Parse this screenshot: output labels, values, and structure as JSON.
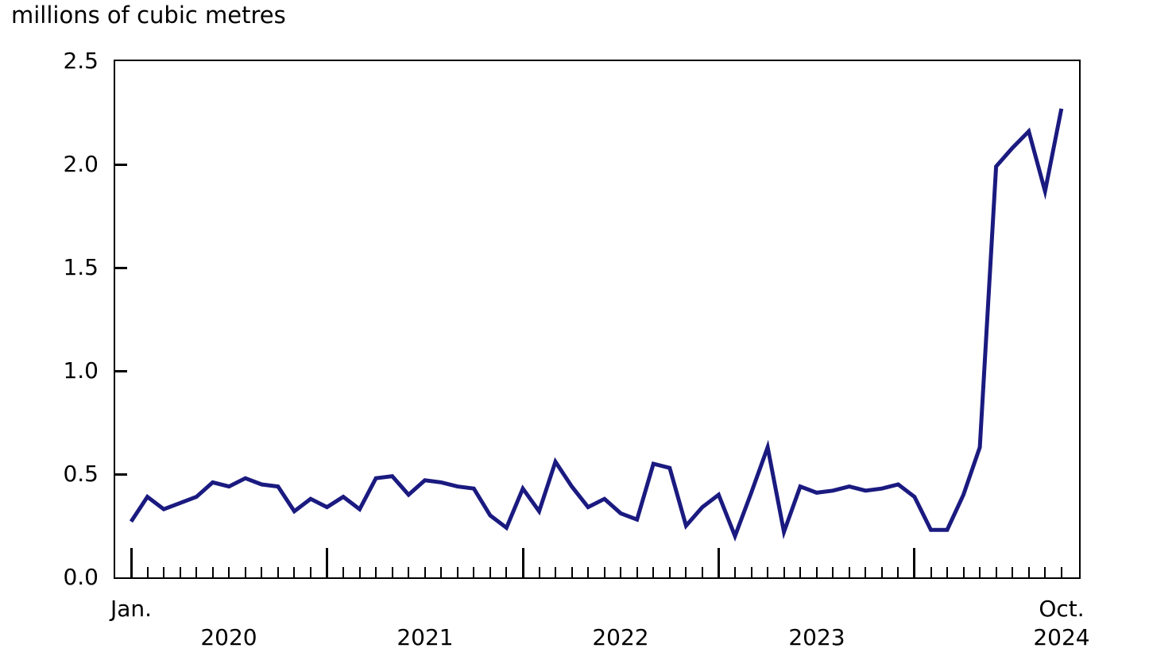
{
  "title": "millions of cubic metres",
  "colors": {
    "line": "#1a1a80",
    "axis": "#000000",
    "text": "#000000",
    "background": "#ffffff"
  },
  "chart_data": {
    "type": "line",
    "title": "millions of cubic metres",
    "ylabel": "millions of cubic metres",
    "xlabel": "",
    "ylim": [
      0.0,
      2.5
    ],
    "yticks": [
      0.0,
      0.5,
      1.0,
      1.5,
      2.0,
      2.5
    ],
    "ytick_labels": [
      "0.0",
      "0.5",
      "1.0",
      "1.5",
      "2.0",
      "2.5"
    ],
    "grid": false,
    "legend": "none",
    "x_start_label": "Jan.",
    "x_end_label": "Oct.",
    "year_labels": [
      "2020",
      "2021",
      "2022",
      "2023",
      "2024"
    ],
    "year_label_month_index": [
      6,
      18,
      30,
      42,
      57
    ],
    "x": [
      "2020-01",
      "2020-02",
      "2020-03",
      "2020-04",
      "2020-05",
      "2020-06",
      "2020-07",
      "2020-08",
      "2020-09",
      "2020-10",
      "2020-11",
      "2020-12",
      "2021-01",
      "2021-02",
      "2021-03",
      "2021-04",
      "2021-05",
      "2021-06",
      "2021-07",
      "2021-08",
      "2021-09",
      "2021-10",
      "2021-11",
      "2021-12",
      "2022-01",
      "2022-02",
      "2022-03",
      "2022-04",
      "2022-05",
      "2022-06",
      "2022-07",
      "2022-08",
      "2022-09",
      "2022-10",
      "2022-11",
      "2022-12",
      "2023-01",
      "2023-02",
      "2023-03",
      "2023-04",
      "2023-05",
      "2023-06",
      "2023-07",
      "2023-08",
      "2023-09",
      "2023-10",
      "2023-11",
      "2023-12",
      "2024-01",
      "2024-02",
      "2024-03",
      "2024-04",
      "2024-05",
      "2024-06",
      "2024-07",
      "2024-08",
      "2024-09",
      "2024-10"
    ],
    "series": [
      {
        "name": "millions of cubic metres",
        "color": "#1a1a80",
        "values": [
          0.27,
          0.39,
          0.33,
          0.36,
          0.39,
          0.46,
          0.44,
          0.48,
          0.45,
          0.44,
          0.32,
          0.38,
          0.34,
          0.39,
          0.33,
          0.48,
          0.49,
          0.4,
          0.47,
          0.46,
          0.44,
          0.43,
          0.3,
          0.24,
          0.43,
          0.32,
          0.56,
          0.44,
          0.34,
          0.38,
          0.31,
          0.28,
          0.55,
          0.53,
          0.25,
          0.34,
          0.4,
          0.2,
          0.41,
          0.63,
          0.22,
          0.44,
          0.41,
          0.42,
          0.44,
          0.42,
          0.43,
          0.45,
          0.39,
          0.23,
          0.23,
          0.4,
          0.63,
          1.99,
          2.08,
          2.16,
          1.87,
          2.27
        ]
      }
    ]
  }
}
